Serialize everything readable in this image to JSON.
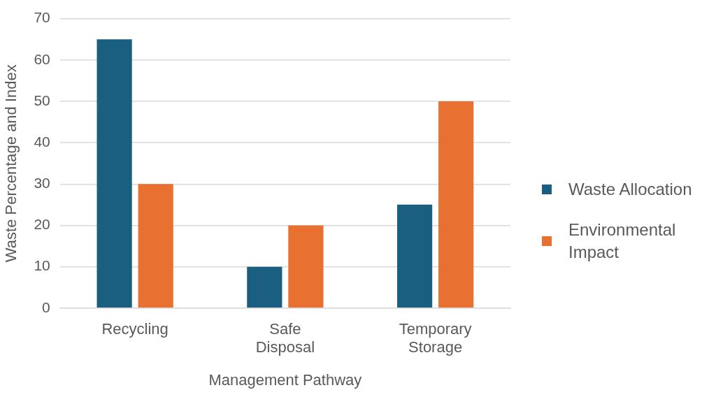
{
  "chart_data": {
    "type": "bar",
    "xlabel": "Management Pathway",
    "ylabel": "Waste Percentage and Index",
    "categories": [
      "Recycling",
      "Safe Disposal",
      "Temporary Storage"
    ],
    "series": [
      {
        "name": "Waste Allocation",
        "color": "#1a5e80",
        "values": [
          65,
          10,
          25
        ]
      },
      {
        "name": "Environmental Impact",
        "color": "#e87132",
        "values": [
          30,
          20,
          50
        ]
      }
    ],
    "ylim": [
      0,
      70
    ],
    "yticks": [
      0,
      10,
      20,
      30,
      40,
      50,
      60,
      70
    ],
    "grid": "y",
    "legend": "right"
  }
}
